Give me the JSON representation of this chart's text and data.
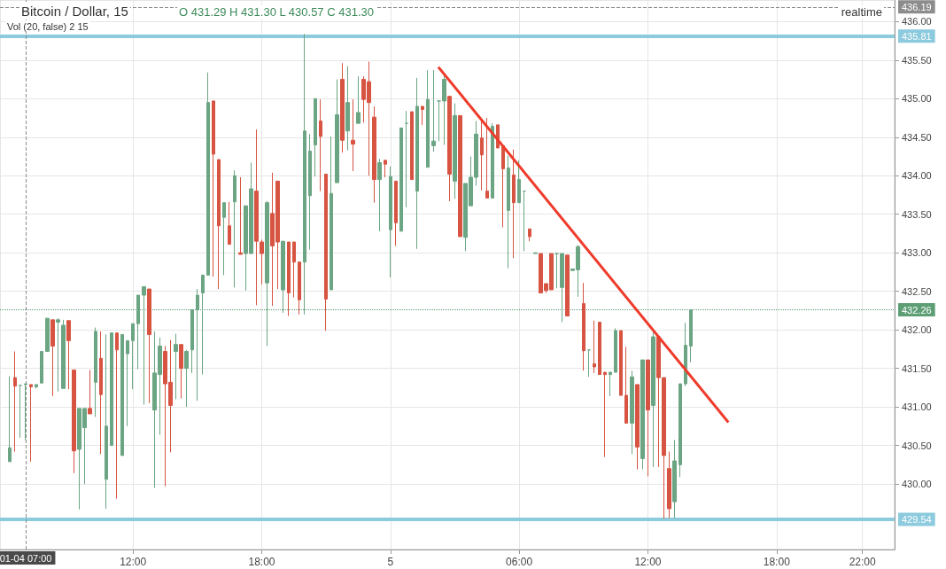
{
  "chart_data": {
    "type": "candlestick",
    "title": "Bitcoin / Dollar, 15",
    "annotations": [
      "O 431.29 H 431.30 L 430.57 C 431.30",
      "Vol (20, false) 2 15",
      "realtime"
    ],
    "xlim": [
      "--01-04T05:48",
      "--01-05T23:30"
    ],
    "xticks": [
      {
        "value": "--01-04T12:00",
        "label": "12:00"
      },
      {
        "value": "--01-04T18:00",
        "label": "18:00"
      },
      {
        "value": "--01-05T00:00",
        "label": "5"
      },
      {
        "value": "--01-05T06:00",
        "label": "06:00"
      },
      {
        "value": "--01-05T12:00",
        "label": "12:00"
      },
      {
        "value": "--01-05T18:00",
        "label": "18:00"
      },
      {
        "value": "--01-05T22:00",
        "label": "22:00"
      }
    ],
    "ylim": [
      429.15,
      436.28
    ],
    "yticks": [
      {
        "value": 430,
        "label": "430.00"
      },
      {
        "value": 430.5,
        "label": "430.50"
      },
      {
        "value": 431,
        "label": "431.00"
      },
      {
        "value": 431.5,
        "label": "431.50"
      },
      {
        "value": 432,
        "label": "432.00"
      },
      {
        "value": 432.5,
        "label": "432.50"
      },
      {
        "value": 433,
        "label": "433.00"
      },
      {
        "value": 433.5,
        "label": "433.50"
      },
      {
        "value": 434,
        "label": "434.00"
      },
      {
        "value": 434.5,
        "label": "434.50"
      },
      {
        "value": 435,
        "label": "435.00"
      },
      {
        "value": 435.5,
        "label": "435.50"
      },
      {
        "value": 436,
        "label": "436.00"
      }
    ],
    "grid": true,
    "ref_lines": [
      {
        "axis": "y",
        "value": 435.81,
        "label": "435.81",
        "color": "#8ccadd",
        "line_style": "solid"
      },
      {
        "axis": "y",
        "value": 429.54,
        "label": "429.54",
        "color": "#8ccadd",
        "line_style": "solid"
      },
      {
        "axis": "y",
        "value": 432.26,
        "label": "432.26",
        "color": "#5d9e75",
        "line_style": "dotted"
      },
      {
        "axis": "y",
        "value": 436.19,
        "label": "436.19",
        "color": "#8c8c8c",
        "line_style": "dashed"
      },
      {
        "axis": "x",
        "value": "--01-04T07:00",
        "label": "01-04 07:00",
        "color": "#8c8c8c",
        "line_style": "dashed"
      }
    ],
    "series": [
      {
        "type": "candlestick",
        "colors": [
          "#6ba583",
          "#d75442",
          "#6ba583",
          "#6ba583",
          "#d75442",
          "#6ba583",
          "#6ba583",
          "#6ba583",
          "#d75442",
          "#6ba583",
          "#6ba583",
          "#d75442",
          "#d75442",
          "#6ba583",
          "#6ba583",
          "#d75442",
          "#6ba583",
          "#d75442",
          "#6ba583",
          "#6ba583",
          "#d75442",
          "#6ba583",
          "#6ba583",
          "#6ba583",
          "#6ba583",
          "#6ba583",
          "#d75442",
          "#6ba583",
          "#6ba583",
          "#d75442",
          "#d75442",
          "#6ba583",
          "#d75442",
          "#6ba583",
          "#6ba583",
          "#6ba583",
          "#6ba583",
          "#6ba583",
          "#d75442",
          "#d75442",
          "#6ba583",
          "#d75442",
          "#6ba583",
          "#d75442",
          "#6ba583",
          "#6ba583",
          "#d75442",
          "#d75442",
          "#6ba583",
          "#d75442",
          "#d75442",
          "#6ba583",
          "#d75442",
          "#d75442",
          "#d75442",
          "#6ba583",
          "#6ba583",
          "#6ba583",
          "#d75442",
          "#d75442",
          "#6ba583",
          "#6ba583",
          "#d75442",
          "#6ba583",
          "#d75442",
          "#6ba583",
          "#d75442",
          "#d75442",
          "#d75442",
          "#6ba583",
          "#d75442",
          "#6ba583",
          "#d75442",
          "#6ba583",
          "#6ba583",
          "#d75442",
          "#6ba583",
          "#d75442",
          "#6ba583",
          "#6ba583",
          "#6ba583",
          "#6ba583",
          "#d75442",
          "#6ba583",
          "#d75442",
          "#6ba583",
          "#6ba583",
          "#6ba583",
          "#d75442",
          "#d75442",
          "#6ba583",
          "#d75442",
          "#d75442",
          "#6ba583",
          "#d75442",
          "#6ba583",
          "#6ba583",
          "#d75442",
          "#6ba583",
          "#d75442",
          "#d75442",
          "#d75442",
          "#6ba583",
          "#6ba583",
          "#d75442",
          "#6ba583",
          "#6ba583",
          "#d75442",
          "#6ba583",
          "#d75442",
          "#d75442",
          "#d75442",
          "#6ba583",
          "#6ba583",
          "#d75442",
          "#d75442",
          "#6ba583",
          "#d75442",
          "#6ba583",
          "#d75442",
          "#6ba583",
          "#d75442",
          "#d75442",
          "#d75442",
          "#6ba583",
          "#6ba583",
          "#6ba583",
          "#6ba583"
        ],
        "x": [
          "--01-04T06:15",
          "--01-04T06:30",
          "--01-04T06:45",
          "--01-04T07:00",
          "--01-04T07:15",
          "--01-04T07:30",
          "--01-04T07:45",
          "--01-04T08:00",
          "--01-04T08:15",
          "--01-04T08:30",
          "--01-04T08:45",
          "--01-04T09:00",
          "--01-04T09:15",
          "--01-04T09:30",
          "--01-04T09:45",
          "--01-04T10:00",
          "--01-04T10:15",
          "--01-04T10:30",
          "--01-04T10:45",
          "--01-04T11:00",
          "--01-04T11:15",
          "--01-04T11:30",
          "--01-04T11:45",
          "--01-04T12:00",
          "--01-04T12:15",
          "--01-04T12:30",
          "--01-04T12:45",
          "--01-04T13:00",
          "--01-04T13:15",
          "--01-04T13:30",
          "--01-04T13:45",
          "--01-04T14:00",
          "--01-04T14:15",
          "--01-04T14:30",
          "--01-04T14:45",
          "--01-04T15:00",
          "--01-04T15:15",
          "--01-04T15:30",
          "--01-04T15:45",
          "--01-04T16:00",
          "--01-04T16:15",
          "--01-04T16:30",
          "--01-04T16:45",
          "--01-04T17:00",
          "--01-04T17:15",
          "--01-04T17:30",
          "--01-04T17:45",
          "--01-04T18:00",
          "--01-04T18:15",
          "--01-04T18:30",
          "--01-04T18:45",
          "--01-04T19:00",
          "--01-04T19:15",
          "--01-04T19:30",
          "--01-04T19:45",
          "--01-04T20:00",
          "--01-04T20:15",
          "--01-04T20:30",
          "--01-04T20:45",
          "--01-04T21:00",
          "--01-04T21:15",
          "--01-04T21:30",
          "--01-04T21:45",
          "--01-04T22:00",
          "--01-04T22:15",
          "--01-04T22:30",
          "--01-04T22:45",
          "--01-04T23:00",
          "--01-04T23:15",
          "--01-04T23:30",
          "--01-04T23:45",
          "--01-05T00:00",
          "--01-05T00:15",
          "--01-05T00:30",
          "--01-05T00:45",
          "--01-05T01:00",
          "--01-05T01:15",
          "--01-05T01:30",
          "--01-05T01:45",
          "--01-05T02:00",
          "--01-05T02:15",
          "--01-05T02:30",
          "--01-05T02:45",
          "--01-05T03:00",
          "--01-05T03:15",
          "--01-05T03:30",
          "--01-05T03:45",
          "--01-05T04:00",
          "--01-05T04:15",
          "--01-05T04:30",
          "--01-05T04:45",
          "--01-05T05:00",
          "--01-05T05:15",
          "--01-05T05:30",
          "--01-05T05:45",
          "--01-05T06:00",
          "--01-05T06:15",
          "--01-05T06:30",
          "--01-05T06:45",
          "--01-05T07:00",
          "--01-05T07:15",
          "--01-05T07:30",
          "--01-05T07:45",
          "--01-05T08:00",
          "--01-05T08:15",
          "--01-05T08:30",
          "--01-05T08:45",
          "--01-05T09:00",
          "--01-05T09:15",
          "--01-05T09:30",
          "--01-05T09:45",
          "--01-05T10:00",
          "--01-05T10:15",
          "--01-05T10:30",
          "--01-05T10:45",
          "--01-05T11:00",
          "--01-05T11:15",
          "--01-05T11:30",
          "--01-05T11:45",
          "--01-05T12:00",
          "--01-05T12:15",
          "--01-05T12:30",
          "--01-05T12:45",
          "--01-05T13:00",
          "--01-05T13:15",
          "--01-05T13:30",
          "--01-05T13:45",
          "--01-05T14:00"
        ],
        "ohlc": [
          [
            430.29,
            431.4,
            430.29,
            430.47
          ],
          [
            431.38,
            431.72,
            430.42,
            431.27
          ],
          [
            431.28,
            431.28,
            430.6,
            431.28
          ],
          [
            431.29,
            431.3,
            430.57,
            431.3
          ],
          [
            431.29,
            431.29,
            430.29,
            431.26
          ],
          [
            431.26,
            431.29,
            431.24,
            431.29
          ],
          [
            431.31,
            431.72,
            431.31,
            431.72
          ],
          [
            431.72,
            432.15,
            431.72,
            432.15
          ],
          [
            432.13,
            432.13,
            431.14,
            431.79
          ],
          [
            432.1,
            432.15,
            431.2,
            432.13
          ],
          [
            431.24,
            432.13,
            431.24,
            432.06
          ],
          [
            432.12,
            432.12,
            431.23,
            431.86
          ],
          [
            431.48,
            431.48,
            430.14,
            430.43
          ],
          [
            430.45,
            430.98,
            429.67,
            430.98
          ],
          [
            430.73,
            430.98,
            430.0,
            430.98
          ],
          [
            430.98,
            431.48,
            430.91,
            430.91
          ],
          [
            431.32,
            432.03,
            430.87,
            431.98
          ],
          [
            431.63,
            431.98,
            430.39,
            431.16
          ],
          [
            430.06,
            431.94,
            429.68,
            430.75
          ],
          [
            430.5,
            431.96,
            430.5,
            431.96
          ],
          [
            431.96,
            431.96,
            429.81,
            431.74
          ],
          [
            430.37,
            431.94,
            430.37,
            431.94
          ],
          [
            431.69,
            431.86,
            430.75,
            431.86
          ],
          [
            431.86,
            432.08,
            431.23,
            432.08
          ],
          [
            432.08,
            432.45,
            431.49,
            432.45
          ],
          [
            432.45,
            432.56,
            431.03,
            432.56
          ],
          [
            432.53,
            432.53,
            431.05,
            431.94
          ],
          [
            430.96,
            431.98,
            429.95,
            431.44
          ],
          [
            431.42,
            431.9,
            430.64,
            431.79
          ],
          [
            431.72,
            431.79,
            429.97,
            431.3
          ],
          [
            431.32,
            431.87,
            430.41,
            431.02
          ],
          [
            431.72,
            431.95,
            431.1,
            431.81
          ],
          [
            431.81,
            431.81,
            431.11,
            431.5
          ],
          [
            431.5,
            431.74,
            431.0,
            431.72
          ],
          [
            431.74,
            432.26,
            431.44,
            432.26
          ],
          [
            432.26,
            432.53,
            431.08,
            432.45
          ],
          [
            432.48,
            432.71,
            431.42,
            432.71
          ],
          [
            432.71,
            435.34,
            432.71,
            434.95
          ],
          [
            434.97,
            434.97,
            432.69,
            434.28
          ],
          [
            434.21,
            434.21,
            432.53,
            433.35
          ],
          [
            433.46,
            433.65,
            432.71,
            433.65
          ],
          [
            433.35,
            433.66,
            433.11,
            433.11
          ],
          [
            433.66,
            434.07,
            432.55,
            434.0
          ],
          [
            433.0,
            433.98,
            432.98,
            432.98
          ],
          [
            432.99,
            433.61,
            432.51,
            433.61
          ],
          [
            432.99,
            434.17,
            432.99,
            433.83
          ],
          [
            433.8,
            434.6,
            432.32,
            433.15
          ],
          [
            433.14,
            433.17,
            432.59,
            432.99
          ],
          [
            432.61,
            433.67,
            431.79,
            433.65
          ],
          [
            433.51,
            434.04,
            432.31,
            433.09
          ],
          [
            433.93,
            433.93,
            432.53,
            433.14
          ],
          [
            432.52,
            433.15,
            432.22,
            433.15
          ],
          [
            433.14,
            433.14,
            432.18,
            432.48
          ],
          [
            433.14,
            433.14,
            432.42,
            432.88
          ],
          [
            432.88,
            432.88,
            432.2,
            432.39
          ],
          [
            432.88,
            435.84,
            432.2,
            434.58
          ],
          [
            433.74,
            434.54,
            433.04,
            434.32
          ],
          [
            434.4,
            435.0,
            433.99,
            435.0
          ],
          [
            434.71,
            434.99,
            433.8,
            434.51
          ],
          [
            434.02,
            434.02,
            431.99,
            432.4
          ],
          [
            432.52,
            434.51,
            432.52,
            433.77
          ],
          [
            433.91,
            435.25,
            433.91,
            434.79
          ],
          [
            435.25,
            435.46,
            434.3,
            434.46
          ],
          [
            434.58,
            435.42,
            434.33,
            434.95
          ],
          [
            434.46,
            434.99,
            434.06,
            434.41
          ],
          [
            434.68,
            435.29,
            434.68,
            434.82
          ],
          [
            435.25,
            435.29,
            434.69,
            434.99
          ],
          [
            435.22,
            435.48,
            434.0,
            434.95
          ],
          [
            434.76,
            434.9,
            433.65,
            433.95
          ],
          [
            433.95,
            434.22,
            433.28,
            434.17
          ],
          [
            434.2,
            434.2,
            433.98,
            434.15
          ],
          [
            433.3,
            434.12,
            432.68,
            433.99
          ],
          [
            433.93,
            433.93,
            433.09,
            433.39
          ],
          [
            433.28,
            434.62,
            433.28,
            434.62
          ],
          [
            434.68,
            434.84,
            433.59,
            434.68
          ],
          [
            434.83,
            434.83,
            433.95,
            433.95
          ],
          [
            433.8,
            435.27,
            433.05,
            434.9
          ],
          [
            434.9,
            434.9,
            434.66,
            434.86
          ],
          [
            434.11,
            435.37,
            434.11,
            434.99
          ],
          [
            434.39,
            435.37,
            434.31,
            434.45
          ],
          [
            434.97,
            434.97,
            434.45,
            434.97
          ],
          [
            434.97,
            435.3,
            434.4,
            435.25
          ],
          [
            435.03,
            435.03,
            433.67,
            434.02
          ],
          [
            433.93,
            434.94,
            433.7,
            434.78
          ],
          [
            434.78,
            434.78,
            433.21,
            433.21
          ],
          [
            433.2,
            433.9,
            433.02,
            433.9
          ],
          [
            433.61,
            434.25,
            433.61,
            433.98
          ],
          [
            433.98,
            434.71,
            433.87,
            434.54
          ],
          [
            434.49,
            434.71,
            433.81,
            434.27
          ],
          [
            433.8,
            434.75,
            433.71,
            433.71
          ],
          [
            433.71,
            434.68,
            433.71,
            434.64
          ],
          [
            434.66,
            434.66,
            434.36,
            434.36
          ],
          [
            434.39,
            434.39,
            433.33,
            434.09
          ],
          [
            433.55,
            434.26,
            432.8,
            434.1
          ],
          [
            434.01,
            434.34,
            432.93,
            433.65
          ],
          [
            433.65,
            434.2,
            433.65,
            433.95
          ],
          [
            433.8,
            433.8,
            433.02,
            433.8
          ],
          [
            433.31,
            433.31,
            433.15,
            433.21
          ],
          [
            432.99,
            433.0,
            432.99,
            433.0
          ],
          [
            432.99,
            432.99,
            432.48,
            432.48
          ],
          [
            432.6,
            432.6,
            432.48,
            432.51
          ],
          [
            432.99,
            432.99,
            432.52,
            432.52
          ],
          [
            432.99,
            432.99,
            432.54,
            432.99
          ],
          [
            432.55,
            432.99,
            432.1,
            432.99
          ],
          [
            432.97,
            432.97,
            432.18,
            432.18
          ],
          [
            432.77,
            432.79,
            432.77,
            432.79
          ],
          [
            432.78,
            433.1,
            432.43,
            433.08
          ],
          [
            432.34,
            432.61,
            431.47,
            431.73
          ],
          [
            431.74,
            431.74,
            431.39,
            431.74
          ],
          [
            431.56,
            432.12,
            431.44,
            431.52
          ],
          [
            432.1,
            432.1,
            431.42,
            431.42
          ],
          [
            431.45,
            431.45,
            430.35,
            431.42
          ],
          [
            431.42,
            431.45,
            431.14,
            431.45
          ],
          [
            431.45,
            432.02,
            431.45,
            431.99
          ],
          [
            431.99,
            431.99,
            431.15,
            431.15
          ],
          [
            431.15,
            431.78,
            430.79,
            430.79
          ],
          [
            430.79,
            431.47,
            430.39,
            431.39
          ],
          [
            431.29,
            431.29,
            430.19,
            430.48
          ],
          [
            430.33,
            431.61,
            430.19,
            431.61
          ],
          [
            431.61,
            431.61,
            430.1,
            430.96
          ],
          [
            431.02,
            431.98,
            430.22,
            431.91
          ],
          [
            431.91,
            431.91,
            430.22,
            431.38
          ],
          [
            431.38,
            431.38,
            429.55,
            430.37
          ],
          [
            430.2,
            430.42,
            429.56,
            429.68
          ],
          [
            429.77,
            430.57,
            429.56,
            430.3
          ],
          [
            430.25,
            431.3,
            430.09,
            431.3
          ],
          [
            431.3,
            432.09,
            431.27,
            431.8
          ],
          [
            431.79,
            432.26,
            431.58,
            432.26
          ]
        ]
      },
      {
        "type": "line",
        "color": "#ee3b2b",
        "x": [
          "--01-05T02:14",
          "--01-05T15:45"
        ],
        "values": [
          435.41,
          430.8
        ]
      }
    ]
  }
}
